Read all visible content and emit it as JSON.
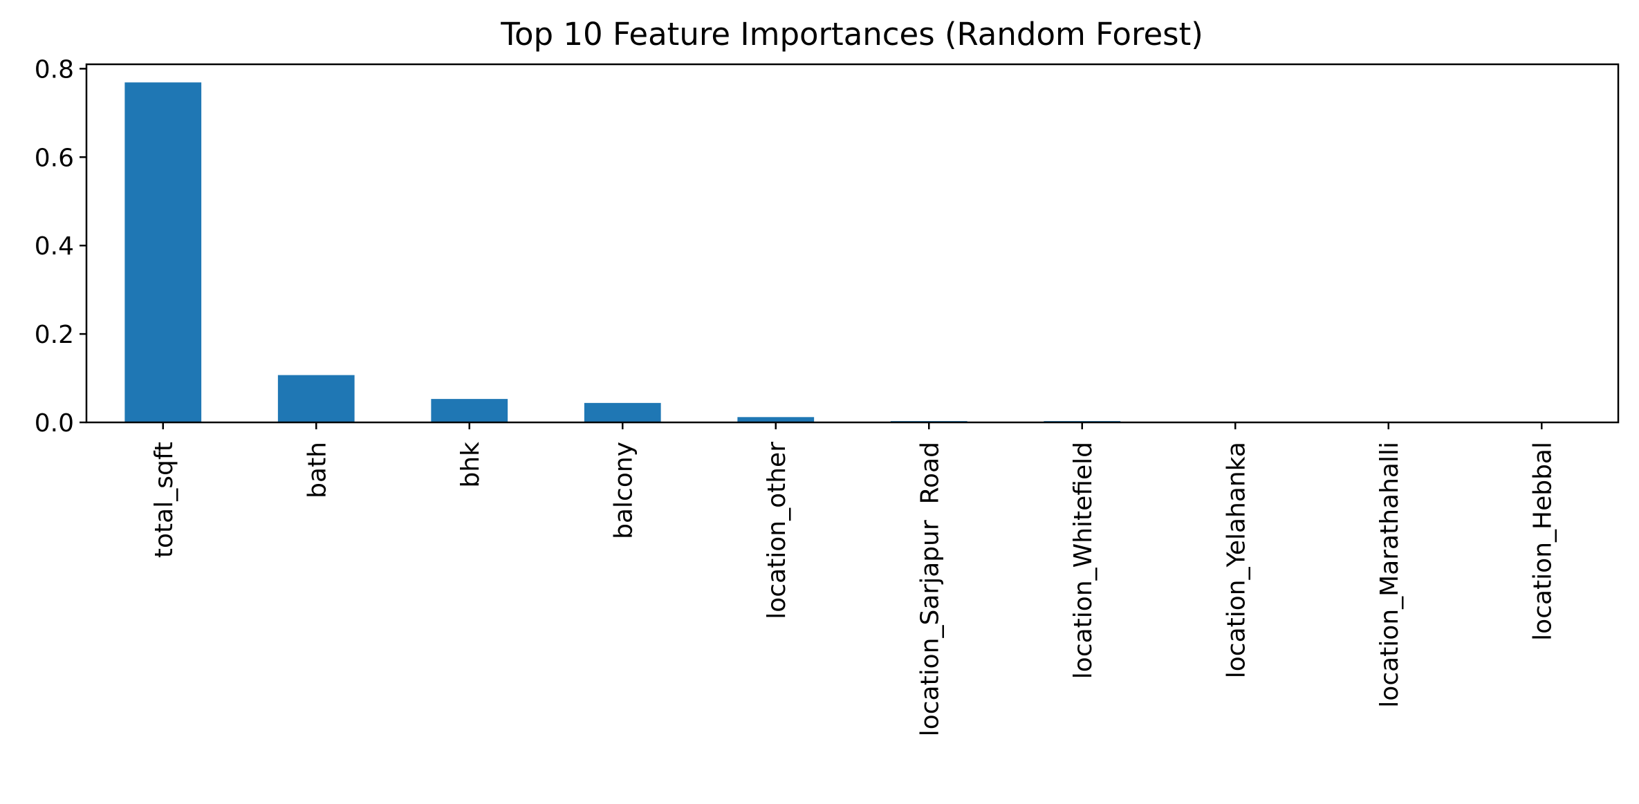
{
  "chart_data": {
    "type": "bar",
    "title": "Top 10 Feature Importances (Random Forest)",
    "xlabel": "",
    "ylabel": "",
    "categories": [
      "total_sqft",
      "bath",
      "bhk",
      "balcony",
      "location_other",
      "location_Sarjapur  Road",
      "location_Whitefield",
      "location_Yelahanka",
      "location_Marathahalli",
      "location_Hebbal"
    ],
    "values": [
      0.769,
      0.107,
      0.053,
      0.044,
      0.012,
      0.003,
      0.003,
      0.001,
      0.001,
      0.001
    ],
    "ylim": [
      0,
      0.81
    ],
    "yticks": [
      0.0,
      0.2,
      0.4,
      0.6,
      0.8
    ],
    "ytick_labels": [
      "0.0",
      "0.2",
      "0.4",
      "0.6",
      "0.8"
    ],
    "bar_color": "#1f77b4",
    "grid": false,
    "legend": "none"
  }
}
